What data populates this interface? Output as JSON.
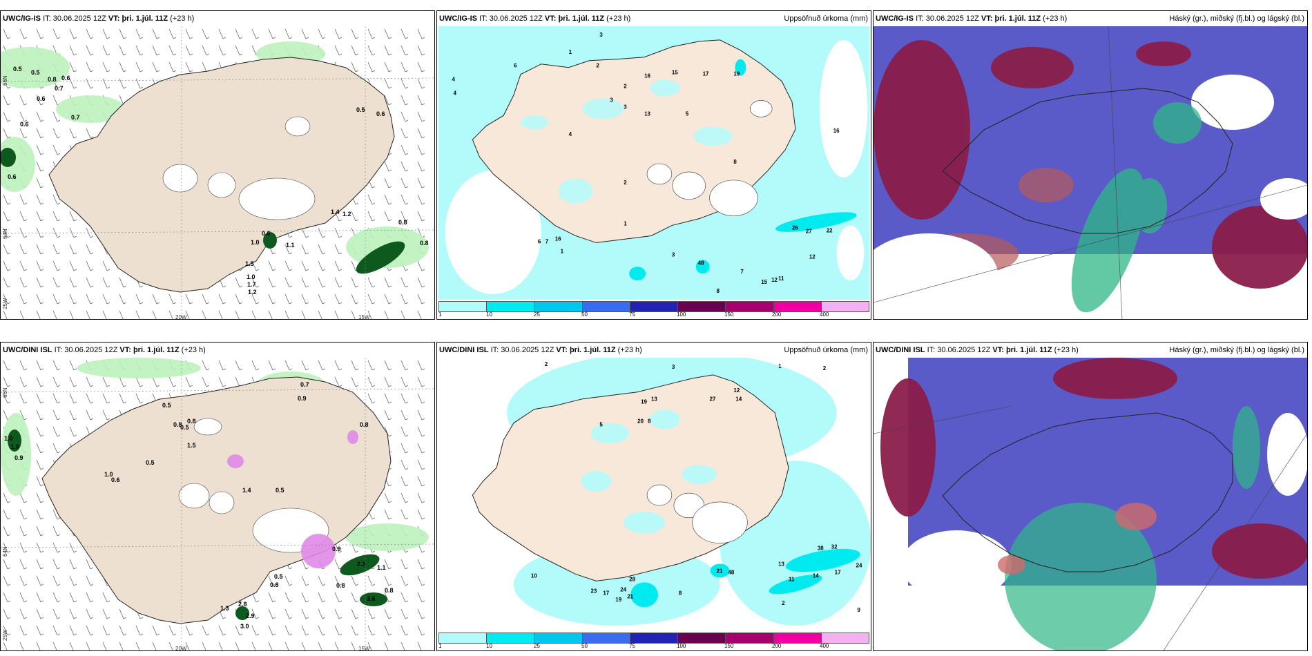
{
  "panels": {
    "p1": {
      "model": "UWC/IG-IS",
      "it_label": "IT:",
      "it_value": "30.06.2025 12Z",
      "vt_label": "VT:",
      "vt_value": "þri. 1.júl. 11Z",
      "lead": "(+23 h)",
      "right_title": ""
    },
    "p2": {
      "model": "UWC/IG-IS",
      "it_label": "IT:",
      "it_value": "30.06.2025 12Z",
      "vt_label": "VT:",
      "vt_value": "þri. 1.júl. 11Z",
      "lead": "(+23 h)",
      "right_title": "Uppsöfnuð úrkoma (mm)"
    },
    "p3": {
      "model": "UWC/IG-IS",
      "it_label": "IT:",
      "it_value": "30.06.2025 12Z",
      "vt_label": "VT:",
      "vt_value": "þri. 1.júl. 11Z",
      "lead": "(+23 h)",
      "right_title": "Háský (gr.), miðský (fj.bl.) og lágský (bl.)"
    },
    "p4": {
      "model": "UWC/DINI ISL",
      "it_label": "IT:",
      "it_value": "30.06.2025 12Z",
      "vt_label": "VT:",
      "vt_value": "þri. 1.júl. 11Z",
      "lead": "(+23 h)",
      "right_title": ""
    },
    "p5": {
      "model": "UWC/DINI ISL",
      "it_label": "IT:",
      "it_value": "30.06.2025 12Z",
      "vt_label": "VT:",
      "vt_value": "þri. 1.júl. 11Z",
      "lead": "(+23 h)",
      "right_title": "Uppsöfnuð úrkoma (mm)"
    },
    "p6": {
      "model": "UWC/DINI ISL",
      "it_label": "IT:",
      "it_value": "30.06.2025 12Z",
      "vt_label": "VT:",
      "vt_value": "þri. 1.júl. 11Z",
      "lead": "(+23 h)",
      "right_title": "Háský (gr.), miðský (fj.bl.) og lágský (bl.)"
    }
  },
  "axes": {
    "lon_20": "20W",
    "lon_15": "15W",
    "lat_66": "66N",
    "lat_64": "64N",
    "lon_25": "25W"
  },
  "colorbar": {
    "labels": [
      "1",
      "10",
      "25",
      "50",
      "75",
      "100",
      "150",
      "200",
      "400"
    ],
    "colors": [
      "#b3fbfb",
      "#00eaf0",
      "#00c8ec",
      "#3a6cf0",
      "#2222b4",
      "#6a0050",
      "#a6006e",
      "#f000a0",
      "#f4b0f0"
    ]
  },
  "annotations": {
    "p1": [
      "0.5",
      "0.5",
      "0.8",
      "0.6",
      "0.7",
      "0.6",
      "0.7",
      "0.6",
      "0.6",
      "0.5",
      "0.6",
      "1.4",
      "1.2",
      "0.8",
      "0.8",
      "0.6",
      "1.0",
      "1.1",
      "1.5",
      "1.0",
      "1.7",
      "1.2"
    ],
    "p2": [
      "3",
      "4",
      "4",
      "6",
      "1",
      "2",
      "16",
      "15",
      "17",
      "19",
      "2",
      "3",
      "3",
      "13",
      "5",
      "4",
      "2",
      "1",
      "8",
      "26",
      "27",
      "22",
      "12",
      "16",
      "12",
      "15",
      "11",
      "48",
      "3",
      "8",
      "7",
      "1",
      "6",
      "7",
      "16"
    ],
    "p4": [
      "0.7",
      "0.5",
      "0.9",
      "0.8",
      "0.8",
      "0.5",
      "0.5",
      "0.8",
      "1.0",
      "1.0",
      "0.9",
      "1.0",
      "0.6",
      "1.5",
      "0.5",
      "1.4",
      "0.9",
      "2.2",
      "1.1",
      "0.8",
      "0.5",
      "0.8",
      "1.3",
      "2.8",
      "2.9",
      "3.0",
      "3.6",
      "0.8"
    ],
    "p5": [
      "2",
      "3",
      "1",
      "2",
      "12",
      "14",
      "27",
      "19",
      "13",
      "20",
      "8",
      "5",
      "38",
      "32",
      "24",
      "17",
      "14",
      "11",
      "13",
      "48",
      "21",
      "28",
      "23",
      "17",
      "19",
      "24",
      "21",
      "10",
      "8",
      "9",
      "2"
    ]
  }
}
